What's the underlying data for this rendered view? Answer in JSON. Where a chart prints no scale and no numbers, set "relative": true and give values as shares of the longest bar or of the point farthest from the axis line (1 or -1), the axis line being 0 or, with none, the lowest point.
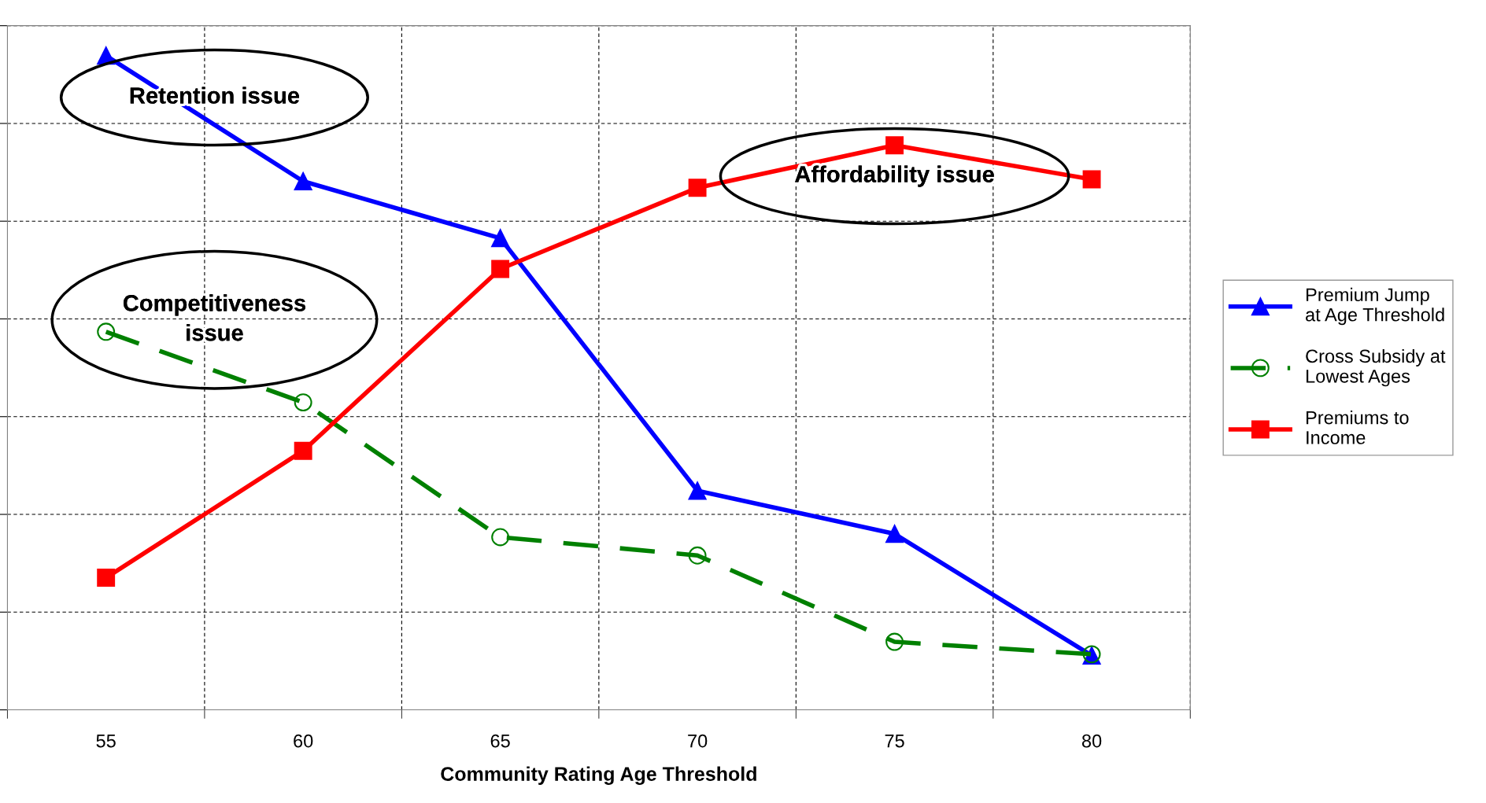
{
  "chart_data": {
    "type": "line",
    "relative": true,
    "xlabel": "Community Rating Age Threshold",
    "categories": [
      "55",
      "60",
      "65",
      "70",
      "75",
      "80"
    ],
    "series": [
      {
        "name": "Premium Jump\nat Age Threshold",
        "color": "#0000ff",
        "marker": "triangle",
        "line_style": "solid",
        "values": [
          1,
          0.808,
          0.721,
          0.335,
          0.269,
          0.083
        ]
      },
      {
        "name": "Cross Subsidy at\nLowest Ages",
        "color": "#008000",
        "marker": "circle",
        "line_style": "dashed",
        "values": [
          0.578,
          0.47,
          0.264,
          0.236,
          0.104,
          0.085
        ]
      },
      {
        "name": "Premiums to\nIncome",
        "color": "#ff0000",
        "marker": "square",
        "line_style": "solid",
        "values": [
          0.202,
          0.396,
          0.674,
          0.798,
          0.863,
          0.811
        ]
      }
    ],
    "annotations": [
      "Retention issue",
      "Competitiveness\nissue",
      "Affordability issue"
    ],
    "grid": true,
    "legend": "right"
  }
}
